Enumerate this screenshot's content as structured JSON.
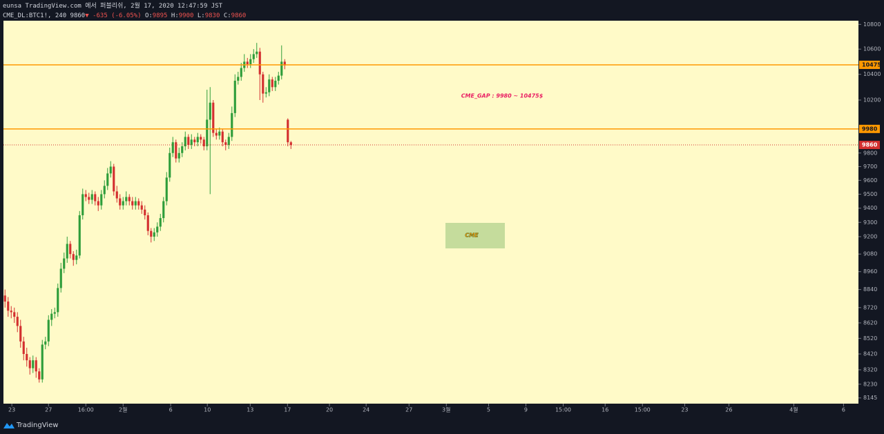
{
  "header": {
    "title": "eunsa TradingView.com 에서 퍼블리쉬, 2월 17, 2020 12:47:59 JST",
    "symbol": "CME_DL:BTC1!, 240",
    "last": "9860",
    "arrow": "▼",
    "change": "-635 (-6.05%)",
    "ohlc": [
      {
        "label": "O:",
        "value": "9895"
      },
      {
        "label": "H:",
        "value": "9900"
      },
      {
        "label": "L:",
        "value": "9830"
      },
      {
        "label": "C:",
        "value": "9860"
      }
    ]
  },
  "chart_data": {
    "type": "candlestick",
    "log_scale": true,
    "grid": false,
    "background": "#fffac8",
    "up_color": "#2e9d3a",
    "down_color": "#d32f2f",
    "ylim": [
      8110,
      10830
    ],
    "yticks": [
      10800,
      10600,
      10400,
      10200,
      9800,
      9700,
      9600,
      9500,
      9400,
      9300,
      9200,
      9080,
      8960,
      8840,
      8720,
      8620,
      8520,
      8420,
      8320,
      8230,
      8145
    ],
    "xlim": [
      -0.5,
      274.6
    ],
    "xticks": [
      {
        "value": 2.2,
        "label": "23"
      },
      {
        "value": 14,
        "label": "27"
      },
      {
        "value": 26,
        "label": "16:00"
      },
      {
        "value": 38,
        "label": "2월"
      },
      {
        "value": 53.3,
        "label": "6"
      },
      {
        "value": 65.1,
        "label": "10"
      },
      {
        "value": 78.9,
        "label": "13"
      },
      {
        "value": 90.9,
        "label": "17"
      },
      {
        "value": 104.4,
        "label": "20"
      },
      {
        "value": 116.2,
        "label": "24"
      },
      {
        "value": 130,
        "label": "27"
      },
      {
        "value": 142,
        "label": "3월"
      },
      {
        "value": 155.6,
        "label": "5"
      },
      {
        "value": 167.6,
        "label": "9"
      },
      {
        "value": 179.6,
        "label": "15:00"
      },
      {
        "value": 193.1,
        "label": "16"
      },
      {
        "value": 205.1,
        "label": "15:00"
      },
      {
        "value": 218.7,
        "label": "23"
      },
      {
        "value": 232.9,
        "label": "26"
      },
      {
        "value": 253.8,
        "label": "4월"
      },
      {
        "value": 269.8,
        "label": "6"
      }
    ],
    "open": [
      8800,
      8760,
      8700,
      8690,
      8660,
      8600,
      8500,
      8420,
      8380,
      8330,
      8380,
      8310,
      8260,
      8480,
      8500,
      8640,
      8680,
      8690,
      8850,
      8980,
      9050,
      9150,
      9080,
      9040,
      9070,
      9350,
      9500,
      9480,
      9460,
      9500,
      9450,
      9420,
      9500,
      9560,
      9650,
      9700,
      9520,
      9470,
      9420,
      9450,
      9480,
      9450,
      9420,
      9450,
      9420,
      9390,
      9350,
      9240,
      9200,
      9230,
      9270,
      9330,
      9450,
      9620,
      9800,
      9880,
      9760,
      9800,
      9850,
      9920,
      9860,
      9900,
      9880,
      9920,
      9900,
      9850,
      10050,
      10180,
      9950,
      9930,
      9960,
      9880,
      9860,
      9920,
      10100,
      10350,
      10380,
      10450,
      10500,
      10480,
      10520,
      10560,
      10580,
      10400,
      10250,
      10260,
      10360,
      10300,
      10350,
      10390,
      10500,
      10050,
      9880
    ],
    "high": [
      8840,
      8790,
      8730,
      8720,
      8690,
      8640,
      8530,
      8460,
      8400,
      8410,
      8400,
      8330,
      8510,
      8530,
      8670,
      8710,
      8720,
      8880,
      9020,
      9090,
      9200,
      9170,
      9100,
      9110,
      9380,
      9540,
      9530,
      9510,
      9530,
      9520,
      9480,
      9530,
      9600,
      9690,
      9740,
      9720,
      9560,
      9500,
      9480,
      9520,
      9500,
      9480,
      9480,
      9470,
      9450,
      9420,
      9370,
      9260,
      9260,
      9300,
      9360,
      9480,
      9660,
      9840,
      9920,
      9900,
      9840,
      9880,
      9960,
      9940,
      9940,
      9920,
      9950,
      9940,
      9920,
      10280,
      10300,
      10200,
      9980,
      9990,
      9980,
      9900,
      9950,
      10150,
      10400,
      10420,
      10490,
      10560,
      10530,
      10560,
      10600,
      10650,
      10610,
      10420,
      10300,
      10400,
      10380,
      10380,
      10420,
      10630,
      10520,
      10060,
      9890
    ],
    "low": [
      8720,
      8660,
      8650,
      8620,
      8560,
      8460,
      8380,
      8340,
      8290,
      8300,
      8270,
      8240,
      8240,
      8450,
      8470,
      8600,
      8650,
      8660,
      8820,
      8950,
      9020,
      9050,
      9000,
      9010,
      9050,
      9320,
      9450,
      9430,
      9430,
      9420,
      9380,
      9390,
      9470,
      9530,
      9620,
      9490,
      9440,
      9390,
      9390,
      9420,
      9420,
      9390,
      9390,
      9390,
      9360,
      9320,
      9210,
      9160,
      9170,
      9200,
      9240,
      9300,
      9420,
      9590,
      9770,
      9730,
      9730,
      9770,
      9820,
      9830,
      9830,
      9850,
      9850,
      9870,
      9820,
      9820,
      9500,
      9920,
      9900,
      9900,
      9850,
      9820,
      9830,
      9890,
      10070,
      10320,
      10350,
      10420,
      10450,
      10450,
      10490,
      10530,
      10200,
      10180,
      10220,
      10230,
      10270,
      10270,
      10320,
      10360,
      10440,
      9850,
      9830
    ],
    "close": [
      8760,
      8700,
      8690,
      8660,
      8600,
      8500,
      8420,
      8380,
      8330,
      8380,
      8310,
      8260,
      8480,
      8500,
      8640,
      8680,
      8690,
      8850,
      8980,
      9050,
      9150,
      9080,
      9040,
      9070,
      9350,
      9500,
      9480,
      9460,
      9500,
      9450,
      9420,
      9500,
      9560,
      9650,
      9700,
      9520,
      9470,
      9420,
      9450,
      9480,
      9450,
      9420,
      9450,
      9420,
      9390,
      9350,
      9240,
      9200,
      9230,
      9270,
      9330,
      9450,
      9620,
      9800,
      9880,
      9760,
      9800,
      9850,
      9920,
      9860,
      9900,
      9880,
      9920,
      9900,
      9850,
      10050,
      10180,
      9950,
      9930,
      9960,
      9880,
      9860,
      9920,
      10100,
      10350,
      10380,
      10450,
      10500,
      10480,
      10520,
      10560,
      10580,
      10400,
      10250,
      10260,
      10360,
      10300,
      10350,
      10390,
      10500,
      10470,
      9880,
      9860
    ],
    "hlines": [
      {
        "value": 10475,
        "color": "#ff9800"
      },
      {
        "value": 9980,
        "color": "#ff9800"
      }
    ],
    "last_price": {
      "value": 9860,
      "color": "#d32f2f"
    },
    "annotations": [
      {
        "text": "CME_GAP : 9980 ~ 10475$",
        "color": "#e91e63"
      },
      {
        "text": "CME",
        "color": "#ff9800",
        "box": "#c5dc9c"
      }
    ]
  },
  "footer": {
    "brand": "TradingView"
  }
}
